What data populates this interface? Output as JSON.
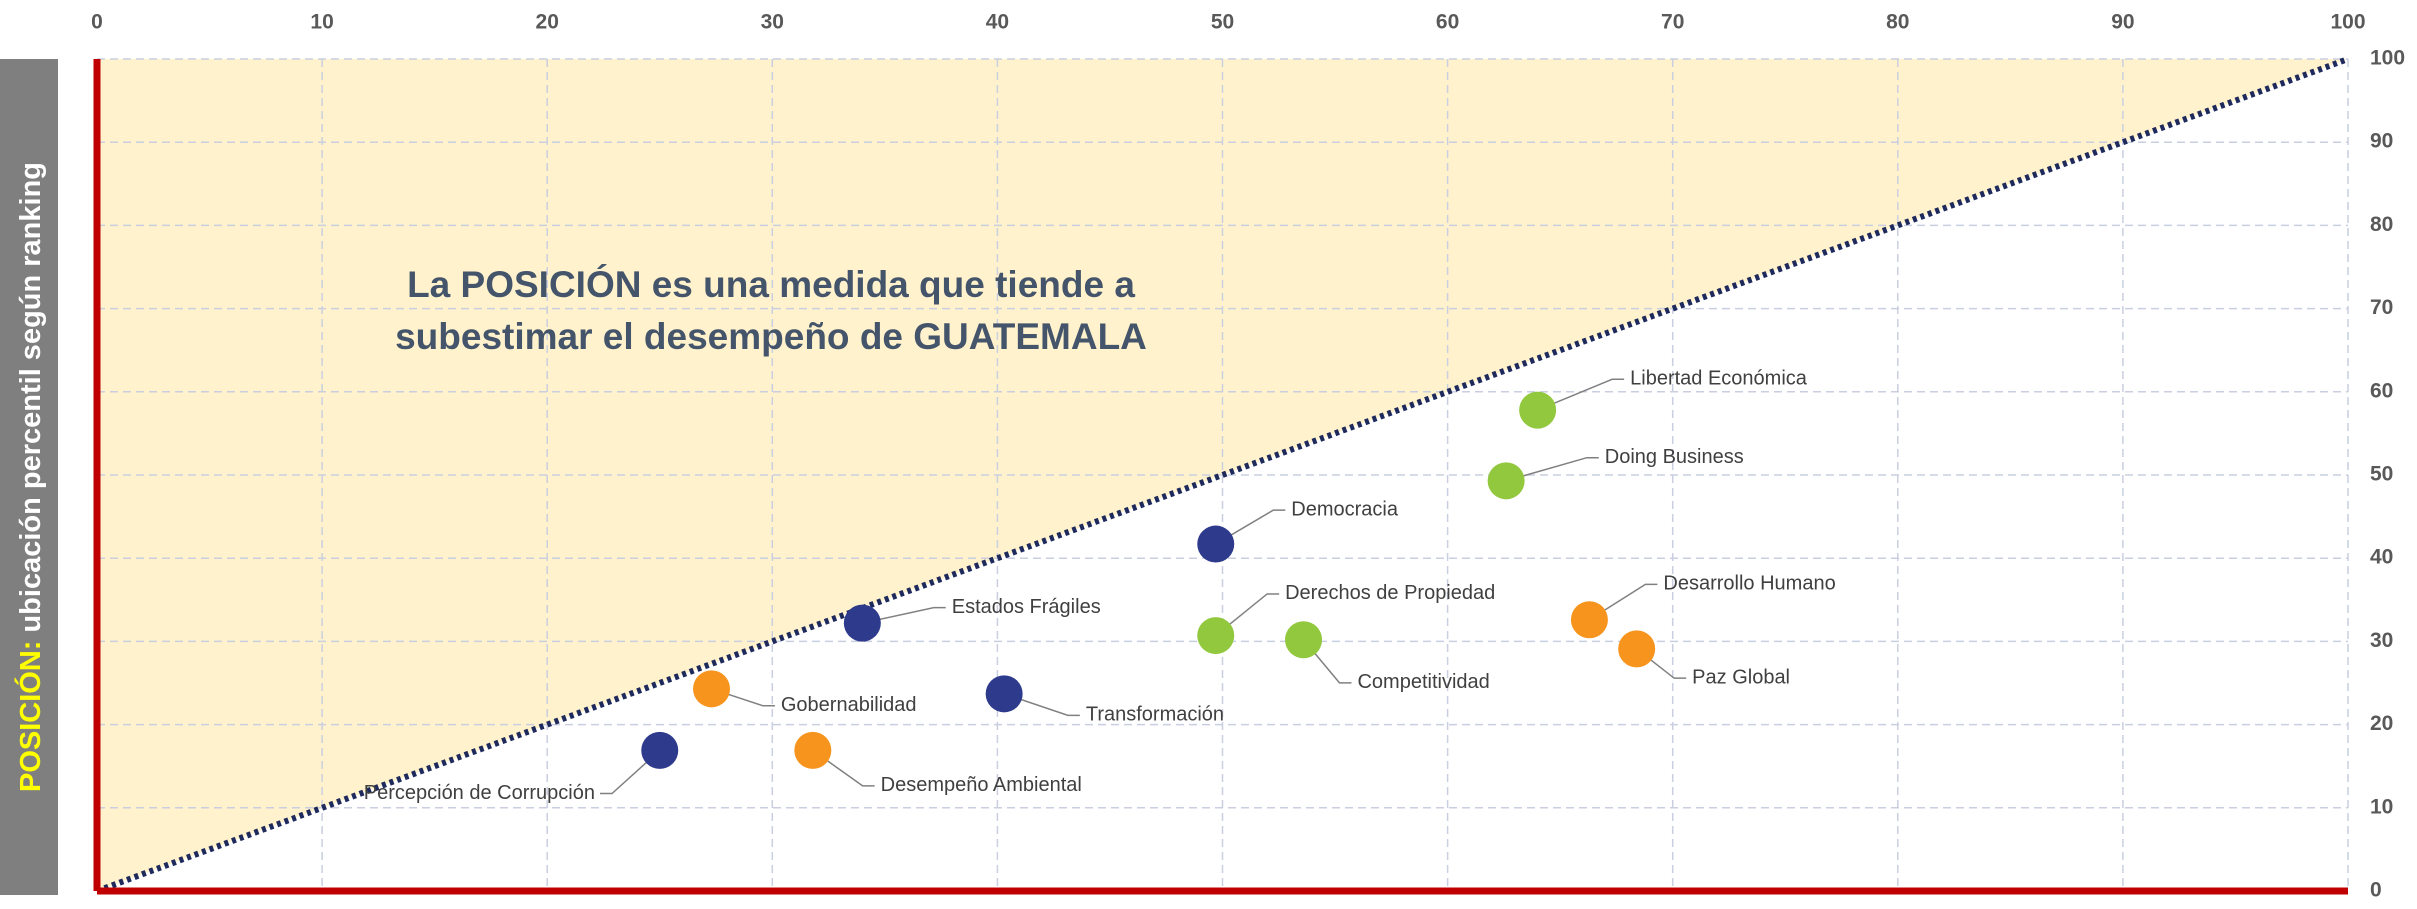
{
  "chart_data": {
    "type": "scatter",
    "ylabel_highlight": "POSICIÓN:",
    "ylabel": "ubicación percentil según ranking",
    "annotation": [
      "La POSICIÓN es una medida que tiende a",
      "subestimar el desempeño de GUATEMALA"
    ],
    "xlim": [
      0,
      100
    ],
    "ylim": [
      0,
      100
    ],
    "xticks": [
      0,
      10,
      20,
      30,
      40,
      50,
      60,
      70,
      80,
      90,
      100
    ],
    "yticks": [
      0,
      10,
      20,
      30,
      40,
      50,
      60,
      70,
      80,
      90,
      100
    ],
    "grid": true,
    "diagonal": true,
    "points": [
      {
        "label": "Libertad Económica",
        "x": 64.0,
        "y": 57.8,
        "color": "#92c83e"
      },
      {
        "label": "Doing Business",
        "x": 62.6,
        "y": 49.3,
        "color": "#92c83e"
      },
      {
        "label": "Democracia",
        "x": 49.7,
        "y": 41.7,
        "color": "#2e3a8c"
      },
      {
        "label": "Derechos de Propiedad",
        "x": 49.7,
        "y": 30.7,
        "color": "#92c83e"
      },
      {
        "label": "Competitividad",
        "x": 53.6,
        "y": 30.2,
        "color": "#92c83e"
      },
      {
        "label": "Desarrollo Humano",
        "x": 66.3,
        "y": 32.6,
        "color": "#f7941d"
      },
      {
        "label": "Paz Global",
        "x": 68.4,
        "y": 29.1,
        "color": "#f7941d"
      },
      {
        "label": "Estados Frágiles",
        "x": 34.0,
        "y": 32.2,
        "color": "#2e3a8c"
      },
      {
        "label": "Transformación",
        "x": 40.3,
        "y": 23.7,
        "color": "#2e3a8c"
      },
      {
        "label": "Gobernabilidad",
        "x": 27.3,
        "y": 24.3,
        "color": "#f7941d"
      },
      {
        "label": "Desempeño Ambiental",
        "x": 31.8,
        "y": 16.9,
        "color": "#f7941d"
      },
      {
        "label": "Percepción de Corrupción",
        "x": 25.0,
        "y": 16.9,
        "color": "#2e3a8c"
      }
    ]
  }
}
